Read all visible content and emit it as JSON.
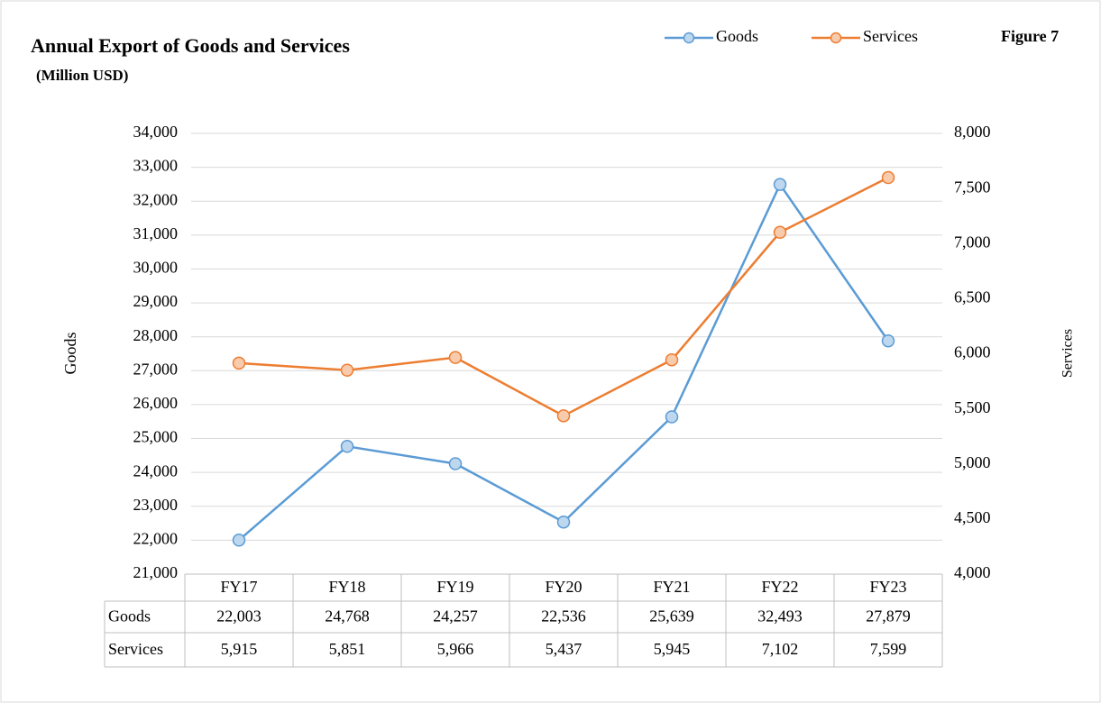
{
  "chart_data": {
    "type": "line",
    "title": "Annual Export of Goods and Services",
    "subtitle": "(Million USD)",
    "annotation": "Figure 7",
    "ylabel": "Goods",
    "y2label": "Services",
    "categories": [
      "FY17",
      "FY18",
      "FY19",
      "FY20",
      "FY21",
      "FY22",
      "FY23"
    ],
    "series": [
      {
        "name": "Goods",
        "color": "#5b9bd5",
        "marker_fill": "#bdd7ee",
        "values": [
          22003,
          24768,
          24257,
          22536,
          25639,
          32493,
          27879
        ],
        "value_labels": [
          "22,003",
          "24,768",
          "24,257",
          "22,536",
          "25,639",
          "32,493",
          "27,879"
        ]
      },
      {
        "name": "Services",
        "color": "#ed7d31",
        "marker_fill": "#f8cbad",
        "axis": "y2",
        "values": [
          5915,
          5851,
          5966,
          5437,
          5945,
          7102,
          7599
        ],
        "value_labels": [
          "5,915",
          "5,851",
          "5,966",
          "5,437",
          "5,945",
          "7,102",
          "7,599"
        ]
      }
    ],
    "ylim": [
      21000,
      34000
    ],
    "yticks": [
      {
        "value": 21000,
        "label": "21,000"
      },
      {
        "value": 22000,
        "label": "22,000"
      },
      {
        "value": 23000,
        "label": "23,000"
      },
      {
        "value": 24000,
        "label": "24,000"
      },
      {
        "value": 25000,
        "label": "25,000"
      },
      {
        "value": 26000,
        "label": "26,000"
      },
      {
        "value": 27000,
        "label": "27,000"
      },
      {
        "value": 28000,
        "label": "28,000"
      },
      {
        "value": 29000,
        "label": "29,000"
      },
      {
        "value": 30000,
        "label": "30,000"
      },
      {
        "value": 31000,
        "label": "31,000"
      },
      {
        "value": 32000,
        "label": "32,000"
      },
      {
        "value": 33000,
        "label": "33,000"
      },
      {
        "value": 34000,
        "label": "34,000"
      }
    ],
    "y2lim": [
      4000,
      8000
    ],
    "y2ticks": [
      {
        "value": 4000,
        "label": "4,000"
      },
      {
        "value": 4500,
        "label": "4,500"
      },
      {
        "value": 5000,
        "label": "5,000"
      },
      {
        "value": 5500,
        "label": "5,500"
      },
      {
        "value": 6000,
        "label": "6,000"
      },
      {
        "value": 6500,
        "label": "6,500"
      },
      {
        "value": 7000,
        "label": "7,000"
      },
      {
        "value": 7500,
        "label": "7,500"
      },
      {
        "value": 8000,
        "label": "8,000"
      }
    ],
    "grid": true
  }
}
